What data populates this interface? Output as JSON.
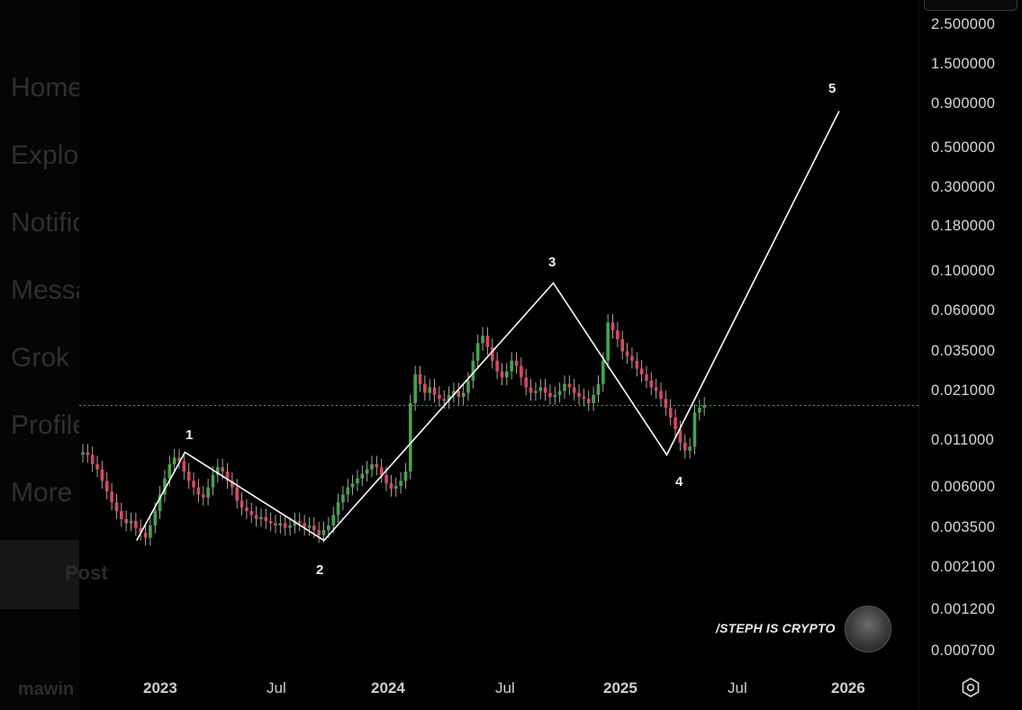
{
  "background_nav": {
    "items": [
      "Home",
      "Explore",
      "Notifications",
      "Messages",
      "Grok",
      "Profile",
      "More"
    ],
    "post_label": "Post",
    "user_name": "mawin"
  },
  "watermark_text": "/STEPH IS CRYPTO",
  "colors": {
    "up": "#3ea84a",
    "down": "#e0455d",
    "wick": "#b9b9b9",
    "path": "#ffffff",
    "price_line": "#3ea84a",
    "background": "#000000"
  },
  "icons": {
    "settings": "gear-icon",
    "avatar": "avatar"
  },
  "chart_data": {
    "type": "candlestick",
    "y_scale": "log",
    "y_ticks": [
      "2.500000",
      "1.500000",
      "0.900000",
      "0.500000",
      "0.300000",
      "0.180000",
      "0.100000",
      "0.060000",
      "0.035000",
      "0.021000",
      "0.011000",
      "0.006000",
      "0.003500",
      "0.002100",
      "0.001200",
      "0.000700"
    ],
    "x_ticks": [
      {
        "label": "2023",
        "bold": true
      },
      {
        "label": "Jul",
        "bold": false
      },
      {
        "label": "2024",
        "bold": true
      },
      {
        "label": "Jul",
        "bold": false
      },
      {
        "label": "2025",
        "bold": true
      },
      {
        "label": "Jul",
        "bold": false
      },
      {
        "label": "2026",
        "bold": true
      }
    ],
    "ylim": [
      0.0005,
      3.0
    ],
    "current_price": 0.0165,
    "wave_labels": [
      "1",
      "2",
      "3",
      "4",
      "5"
    ],
    "wave_path": [
      {
        "date": "2022-11-20",
        "value": 0.0027
      },
      {
        "date": "2023-02-05",
        "value": 0.0088
      },
      {
        "date": "2023-09-15",
        "value": 0.0027
      },
      {
        "date": "2024-09-15",
        "value": 0.085
      },
      {
        "date": "2025-03-15",
        "value": 0.0085
      },
      {
        "date": "2025-12-15",
        "value": 0.85
      }
    ],
    "closes": [
      0.0088,
      0.0085,
      0.0075,
      0.007,
      0.006,
      0.0052,
      0.0045,
      0.004,
      0.0036,
      0.0034,
      0.0035,
      0.0032,
      0.003,
      0.0028,
      0.0033,
      0.004,
      0.005,
      0.0062,
      0.0075,
      0.0082,
      0.0078,
      0.0068,
      0.006,
      0.0055,
      0.005,
      0.0048,
      0.0055,
      0.0065,
      0.0072,
      0.0068,
      0.006,
      0.0055,
      0.0046,
      0.0042,
      0.004,
      0.0038,
      0.0036,
      0.0037,
      0.0035,
      0.0034,
      0.0033,
      0.0034,
      0.0032,
      0.0033,
      0.0035,
      0.0034,
      0.0032,
      0.0033,
      0.0031,
      0.0029,
      0.0031,
      0.0033,
      0.0038,
      0.0045,
      0.005,
      0.0055,
      0.0058,
      0.0062,
      0.0066,
      0.007,
      0.0075,
      0.0072,
      0.0065,
      0.0058,
      0.0054,
      0.0056,
      0.006,
      0.0068,
      0.017,
      0.025,
      0.022,
      0.0195,
      0.021,
      0.019,
      0.018,
      0.0175,
      0.019,
      0.02,
      0.0185,
      0.0195,
      0.023,
      0.03,
      0.038,
      0.042,
      0.036,
      0.03,
      0.026,
      0.024,
      0.026,
      0.03,
      0.028,
      0.024,
      0.021,
      0.0195,
      0.02,
      0.021,
      0.0195,
      0.0185,
      0.019,
      0.02,
      0.022,
      0.021,
      0.0195,
      0.0185,
      0.018,
      0.017,
      0.019,
      0.022,
      0.03,
      0.05,
      0.045,
      0.04,
      0.034,
      0.032,
      0.03,
      0.027,
      0.025,
      0.023,
      0.021,
      0.02,
      0.018,
      0.016,
      0.014,
      0.012,
      0.01,
      0.009,
      0.0095,
      0.015,
      0.016,
      0.0165
    ]
  }
}
